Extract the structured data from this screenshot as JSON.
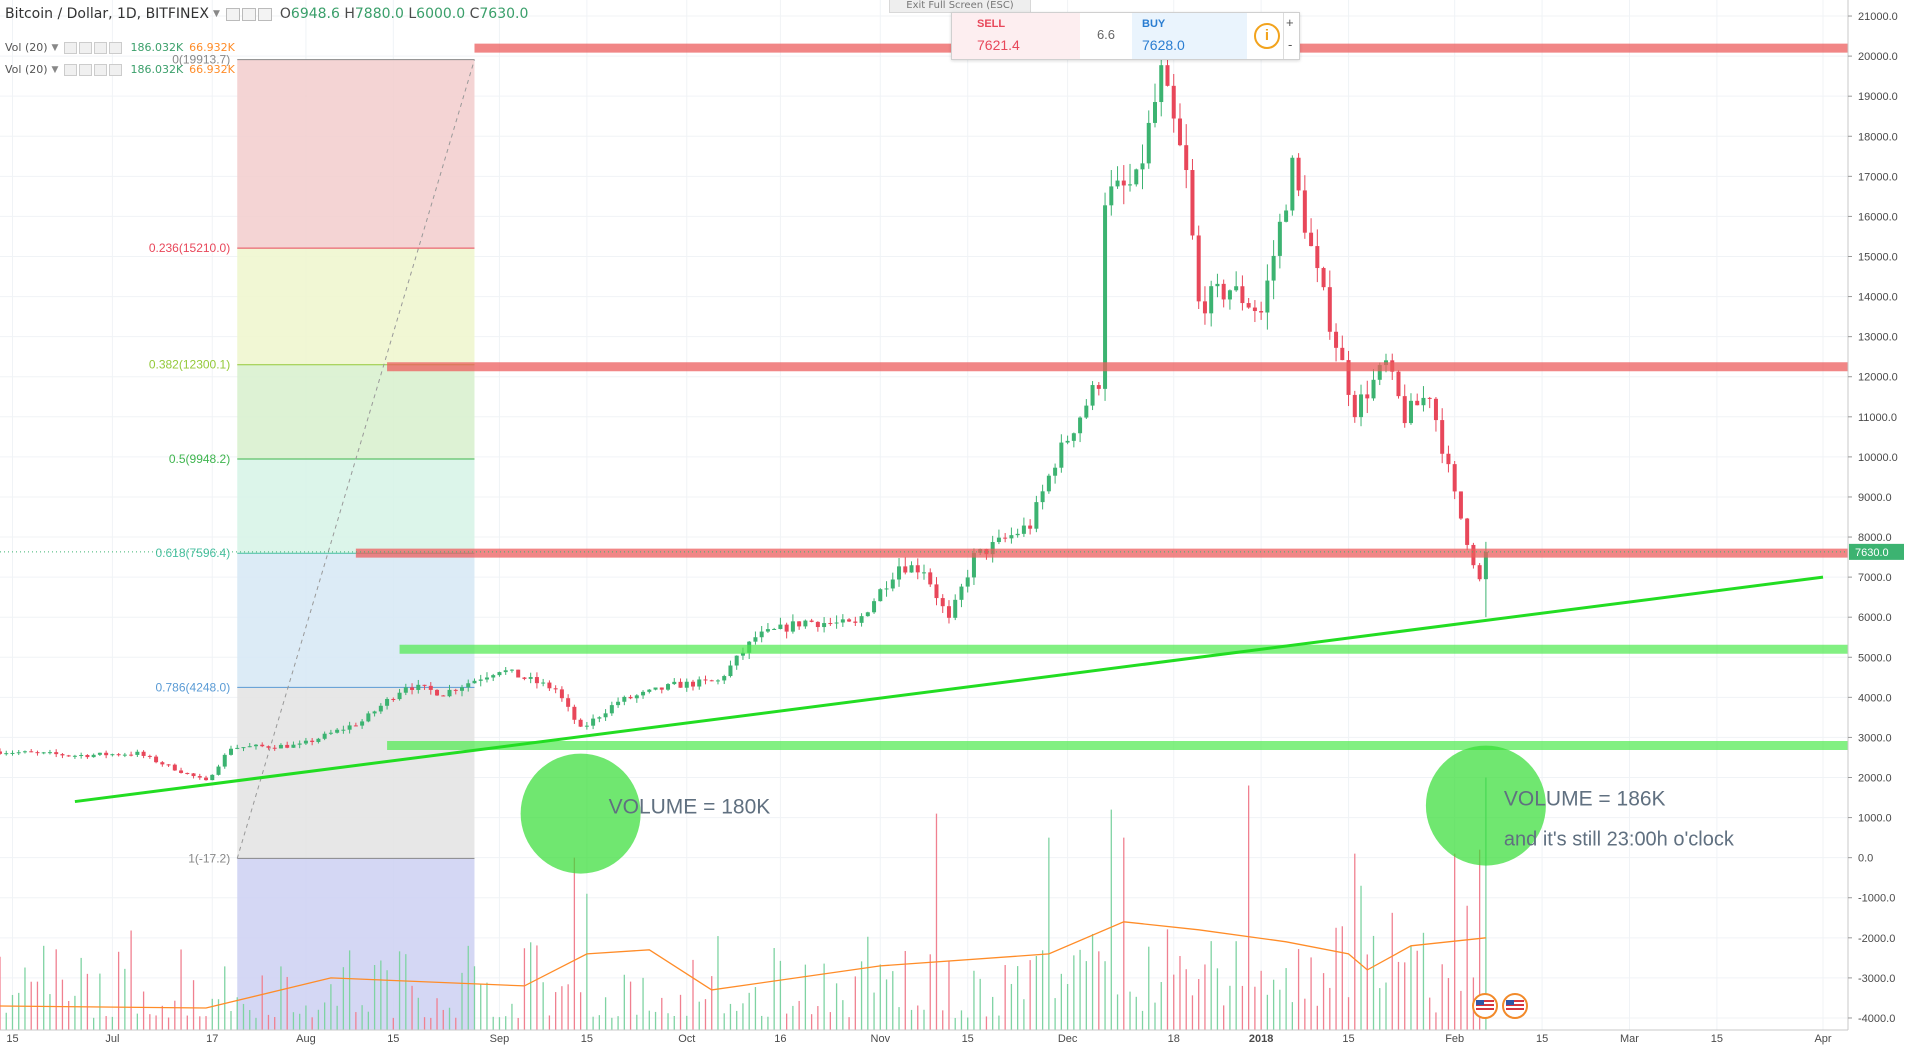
{
  "header": {
    "symbol": "Bitcoin / Dollar, 1D, BITFINEX",
    "open_label": "O",
    "open": "6948.6",
    "high_label": "H",
    "high": "7880.0",
    "low_label": "L",
    "low": "6000.0",
    "close_label": "C",
    "close": "7630.0"
  },
  "volume_rows": [
    {
      "label": "Vol (20)",
      "v1": "186.032K",
      "v2": "66.932K"
    },
    {
      "label": "Vol (20)",
      "v1": "186.032K",
      "v2": "66.932K"
    }
  ],
  "exit_fullscreen": "Exit Full Screen (ESC)",
  "trade_panel": {
    "sell_label": "SELL",
    "sell_value": "7621.4",
    "spread": "6.6",
    "buy_label": "BUY",
    "buy_value": "7628.0",
    "info_icon": "info-icon",
    "plus": "+",
    "minus": "-"
  },
  "colors": {
    "up": "#3cb371",
    "down": "#e8475a",
    "support": "#4dea4d",
    "resistance": "#ec5e5e",
    "trendline": "#22dd22",
    "volume_ma": "#ff8c28",
    "price_tag": "#3cb371"
  },
  "chart_data": {
    "type": "candlestick",
    "title": "Bitcoin / Dollar, 1D, BITFINEX",
    "y_axis": {
      "ticks": [
        "21000.0",
        "20000.0",
        "19000.0",
        "18000.0",
        "17000.0",
        "16000.0",
        "15000.0",
        "14000.0",
        "13000.0",
        "12000.0",
        "11000.0",
        "10000.0",
        "9000.0",
        "8000.0",
        "7000.0",
        "6000.0",
        "5000.0",
        "4000.0",
        "3000.0",
        "2000.0",
        "1000.0",
        "0.0",
        "-1000.0",
        "-2000.0",
        "-3000.0",
        "-4000.0"
      ],
      "range": [
        -4300,
        21400
      ],
      "last_price_tag": "7630.0"
    },
    "x_axis": {
      "ticks": [
        "15",
        "Jul",
        "17",
        "Aug",
        "15",
        "Sep",
        "15",
        "Oct",
        "16",
        "Nov",
        "15",
        "Dec",
        "18",
        "2018",
        "15",
        "Feb",
        "15",
        "Mar",
        "15",
        "Apr"
      ],
      "bold_tick": "2018",
      "start": "2017-06-13",
      "end": "2018-04-05"
    },
    "price_anchors": [
      [
        "2017-06-13",
        2650
      ],
      [
        "2017-06-25",
        2550
      ],
      [
        "2017-07-05",
        2600
      ],
      [
        "2017-07-16",
        1900
      ],
      [
        "2017-07-20",
        2750
      ],
      [
        "2017-07-31",
        2800
      ],
      [
        "2017-08-10",
        3400
      ],
      [
        "2017-08-17",
        4300
      ],
      [
        "2017-08-23",
        4100
      ],
      [
        "2017-09-01",
        4700
      ],
      [
        "2017-09-10",
        4200
      ],
      [
        "2017-09-14",
        3200
      ],
      [
        "2017-09-20",
        3900
      ],
      [
        "2017-09-29",
        4300
      ],
      [
        "2017-10-06",
        4400
      ],
      [
        "2017-10-12",
        5500
      ],
      [
        "2017-10-20",
        5900
      ],
      [
        "2017-10-28",
        5800
      ],
      [
        "2017-11-04",
        7300
      ],
      [
        "2017-11-08",
        7200
      ],
      [
        "2017-11-12",
        5900
      ],
      [
        "2017-11-16",
        7500
      ],
      [
        "2017-11-25",
        8300
      ],
      [
        "2017-11-29",
        9900
      ],
      [
        "2017-12-06",
        11900
      ],
      [
        "2017-12-07",
        16500
      ],
      [
        "2017-12-12",
        16800
      ],
      [
        "2017-12-16",
        19500
      ],
      [
        "2017-12-20",
        17000
      ],
      [
        "2017-12-22",
        13800
      ],
      [
        "2017-12-27",
        14200
      ],
      [
        "2018-01-01",
        13600
      ],
      [
        "2018-01-06",
        17200
      ],
      [
        "2018-01-10",
        14500
      ],
      [
        "2018-01-16",
        11200
      ],
      [
        "2018-01-21",
        12300
      ],
      [
        "2018-01-24",
        11000
      ],
      [
        "2018-01-28",
        11600
      ],
      [
        "2018-02-01",
        9000
      ],
      [
        "2018-02-05",
        6900
      ],
      [
        "2018-02-06",
        7630
      ]
    ],
    "volume_ma_anchors": [
      [
        "2017-06-13",
        -3700
      ],
      [
        "2017-07-16",
        -3750
      ],
      [
        "2017-08-05",
        -3000
      ],
      [
        "2017-09-05",
        -3200
      ],
      [
        "2017-09-15",
        -2400
      ],
      [
        "2017-09-25",
        -2300
      ],
      [
        "2017-10-05",
        -3300
      ],
      [
        "2017-11-01",
        -2700
      ],
      [
        "2017-11-28",
        -2400
      ],
      [
        "2017-12-10",
        -1600
      ],
      [
        "2017-12-22",
        -1800
      ],
      [
        "2018-01-05",
        -2100
      ],
      [
        "2018-01-15",
        -2400
      ],
      [
        "2018-01-18",
        -2800
      ],
      [
        "2018-01-25",
        -2200
      ],
      [
        "2018-02-06",
        -2000
      ]
    ],
    "volume_spikes": [
      [
        "2017-09-13",
        0
      ],
      [
        "2017-09-15",
        -900
      ],
      [
        "2017-11-10",
        1100
      ],
      [
        "2017-11-28",
        500
      ],
      [
        "2017-12-08",
        1200
      ],
      [
        "2017-12-10",
        500
      ],
      [
        "2017-12-30",
        1800
      ],
      [
        "2018-01-16",
        100
      ],
      [
        "2018-01-17",
        -700
      ],
      [
        "2018-02-01",
        100
      ],
      [
        "2018-02-03",
        -1200
      ],
      [
        "2018-02-05",
        200
      ],
      [
        "2018-02-06",
        2000
      ]
    ],
    "fibonacci": {
      "start_date": "2017-07-21",
      "end_date": "2017-08-28",
      "levels": [
        {
          "label": "0(19913.7)",
          "value": 19913.7,
          "color": "#888888"
        },
        {
          "label": "0.236(15210.0)",
          "value": 15210.0,
          "color": "#e8475a"
        },
        {
          "label": "0.382(12300.1)",
          "value": 12300.1,
          "color": "#94c93a"
        },
        {
          "label": "0.5(9948.2)",
          "value": 9948.2,
          "color": "#3fb54f"
        },
        {
          "label": "0.618(7596.4)",
          "value": 7596.4,
          "color": "#47bfa0"
        },
        {
          "label": "0.786(4248.0)",
          "value": 4248.0,
          "color": "#5a9bd5"
        },
        {
          "label": "1(-17.2)",
          "value": -17.2,
          "color": "#888888"
        }
      ],
      "zone_colors": [
        "#f2cccc",
        "#eef6cc",
        "#d7f0cc",
        "#d6f3e6",
        "#d6e8f4",
        "#e3e3e3",
        "#cdd0f2"
      ]
    },
    "horizontal_lines": [
      {
        "kind": "resistance",
        "value": 20200,
        "from": "2017-08-28",
        "to": "2018-04-07"
      },
      {
        "kind": "resistance",
        "value": 12250,
        "from": "2017-08-14",
        "to": "2018-04-07"
      },
      {
        "kind": "resistance",
        "value": 7600,
        "from": "2017-08-09",
        "to": "2018-04-07"
      },
      {
        "kind": "support",
        "value": 5200,
        "from": "2017-08-16",
        "to": "2018-04-07"
      },
      {
        "kind": "support",
        "value": 2800,
        "from": "2017-08-14",
        "to": "2018-04-07"
      }
    ],
    "trendline": {
      "from": [
        "2017-06-25",
        1400
      ],
      "to": [
        "2018-04-01",
        7000
      ]
    },
    "annotations": [
      {
        "text": "VOLUME = 180K",
        "date": "2017-09-14",
        "value": 1100
      },
      {
        "text": "VOLUME = 186K",
        "date": "2018-02-06",
        "value": 1300
      },
      {
        "text": "and it's still 23:00h o'clock",
        "date": "2018-02-06",
        "value": 300
      }
    ]
  }
}
